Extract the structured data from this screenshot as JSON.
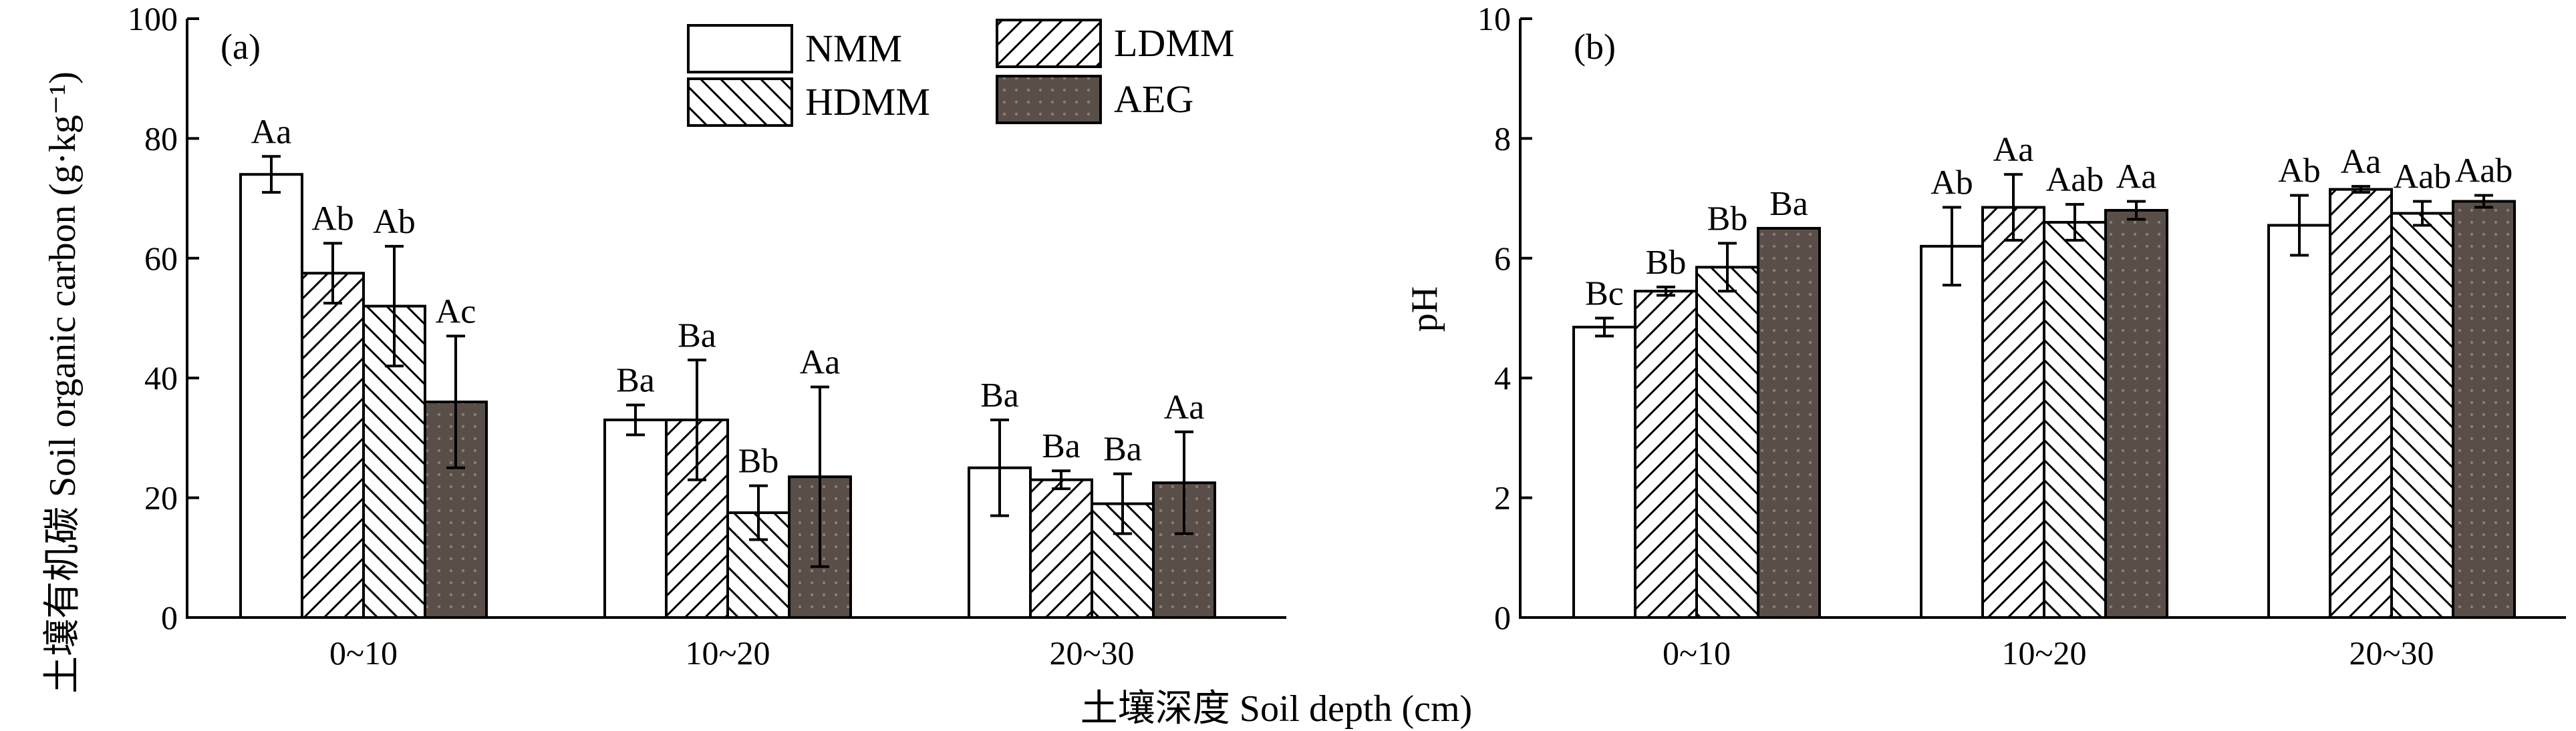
{
  "xlabel": "土壤深度 Soil depth (cm)",
  "legend": {
    "placement": "top-center of panel (a)",
    "entries": [
      {
        "series": "NMM",
        "pattern": "white"
      },
      {
        "series": "LDMM",
        "pattern": "diagonal-forward"
      },
      {
        "series": "HDMM",
        "pattern": "diagonal-backward"
      },
      {
        "series": "AEG",
        "pattern": "dark-dotted"
      }
    ]
  },
  "colors": {
    "bar_outline": "#000000",
    "aeg_fill": "#5a4f48",
    "aeg_dot": "#8a7f76"
  },
  "chart_data": [
    {
      "type": "bar",
      "panel_label": "(a)",
      "ylabel": "土壤有机碳 Soil organic carbon (g·kg⁻¹)",
      "ylim": [
        0,
        100
      ],
      "yticks": [
        "0",
        "20",
        "40",
        "60",
        "80",
        "100"
      ],
      "categories": [
        "0~10",
        "10~20",
        "20~30"
      ],
      "grid": false,
      "series": [
        {
          "name": "NMM",
          "values": [
            74,
            33,
            25
          ],
          "errors": [
            3,
            2.5,
            8
          ],
          "labels": [
            "Aa",
            "Ba",
            "Ba"
          ]
        },
        {
          "name": "LDMM",
          "values": [
            57.5,
            33,
            23
          ],
          "errors": [
            5,
            10,
            1.5
          ],
          "labels": [
            "Ab",
            "Ba",
            "Ba"
          ]
        },
        {
          "name": "HDMM",
          "values": [
            52,
            17.5,
            19
          ],
          "errors": [
            10,
            4.5,
            5
          ],
          "labels": [
            "Ab",
            "Bb",
            "Ba"
          ]
        },
        {
          "name": "AEG",
          "values": [
            36,
            23.5,
            22.5
          ],
          "errors": [
            11,
            15,
            8.5
          ],
          "labels": [
            "Ac",
            "Aa",
            "Aa"
          ]
        }
      ]
    },
    {
      "type": "bar",
      "panel_label": "(b)",
      "ylabel": "pH",
      "ylim": [
        0,
        10
      ],
      "yticks": [
        "0",
        "2",
        "4",
        "6",
        "8",
        "10"
      ],
      "categories": [
        "0~10",
        "10~20",
        "20~30"
      ],
      "grid": false,
      "series": [
        {
          "name": "NMM",
          "values": [
            4.85,
            6.2,
            6.55
          ],
          "errors": [
            0.15,
            0.65,
            0.5
          ],
          "labels": [
            "Bc",
            "Ab",
            "Ab"
          ]
        },
        {
          "name": "LDMM",
          "values": [
            5.45,
            6.85,
            7.15
          ],
          "errors": [
            0.07,
            0.55,
            0.05
          ],
          "labels": [
            "Bb",
            "Aa",
            "Aa"
          ]
        },
        {
          "name": "HDMM",
          "values": [
            5.85,
            6.6,
            6.75
          ],
          "errors": [
            0.4,
            0.3,
            0.2
          ],
          "labels": [
            "Bb",
            "Aab",
            "Aab"
          ]
        },
        {
          "name": "AEG",
          "values": [
            6.5,
            6.8,
            6.95
          ],
          "errors": [
            0,
            0.15,
            0.1
          ],
          "labels": [
            "Ba",
            "Aa",
            "Aab"
          ]
        }
      ]
    }
  ]
}
